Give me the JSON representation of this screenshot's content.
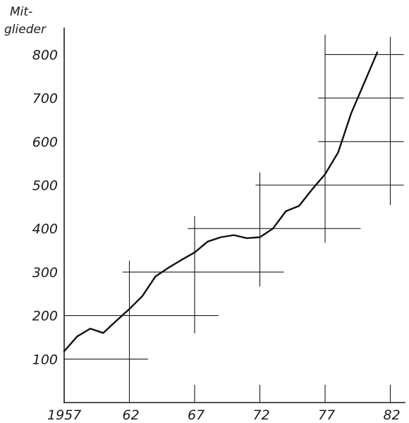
{
  "chart_data": {
    "type": "line",
    "title": "",
    "xlabel": "",
    "ylabel_lines": [
      "Mit-",
      "glieder"
    ],
    "xlim": [
      1957,
      1983
    ],
    "ylim": [
      0,
      850
    ],
    "x_ticks": [
      {
        "value": 1957,
        "label": "1957"
      },
      {
        "value": 1962,
        "label": "62"
      },
      {
        "value": 1967,
        "label": "67"
      },
      {
        "value": 1972,
        "label": "72"
      },
      {
        "value": 1977,
        "label": "77"
      },
      {
        "value": 1982,
        "label": "82"
      }
    ],
    "y_ticks": [
      {
        "value": 100,
        "label": "100"
      },
      {
        "value": 200,
        "label": "200"
      },
      {
        "value": 300,
        "label": "300"
      },
      {
        "value": 400,
        "label": "400"
      },
      {
        "value": 500,
        "label": "500"
      },
      {
        "value": 600,
        "label": "600"
      },
      {
        "value": 700,
        "label": "700"
      },
      {
        "value": 800,
        "label": "800"
      }
    ],
    "grid_segments": {
      "horizontal": [
        {
          "y": 100,
          "x_from": 1957,
          "x_to": 1963.4
        },
        {
          "y": 200,
          "x_from": 1957,
          "x_to": 1968.8
        },
        {
          "y": 300,
          "x_from": 1961.5,
          "x_to": 1973.8
        },
        {
          "y": 400,
          "x_from": 1966.5,
          "x_to": 1979.7
        },
        {
          "y": 500,
          "x_from": 1971.7,
          "x_to": 1983
        },
        {
          "y": 600,
          "x_from": 1976.5,
          "x_to": 1983
        },
        {
          "y": 700,
          "x_from": 1976.5,
          "x_to": 1983
        },
        {
          "y": 800,
          "x_from": 1977,
          "x_to": 1983
        }
      ],
      "vertical": [
        {
          "x": 1962,
          "y_from": 0,
          "y_to": 325
        },
        {
          "x": 1967,
          "y_from": 0,
          "y_to": 40
        },
        {
          "x": 1967,
          "y_from": 160,
          "y_to": 428
        },
        {
          "x": 1972,
          "y_from": 0,
          "y_to": 40
        },
        {
          "x": 1972,
          "y_from": 268,
          "y_to": 528
        },
        {
          "x": 1977,
          "y_from": 0,
          "y_to": 40
        },
        {
          "x": 1977,
          "y_from": 368,
          "y_to": 845
        },
        {
          "x": 1982,
          "y_from": 0,
          "y_to": 40
        },
        {
          "x": 1982,
          "y_from": 455,
          "y_to": 840
        }
      ]
    },
    "series": [
      {
        "x": [
          1957,
          1958,
          1959,
          1960,
          1961,
          1962,
          1963,
          1964,
          1965,
          1966,
          1967,
          1968,
          1969,
          1970,
          1971,
          1972,
          1973,
          1974,
          1975,
          1976,
          1977,
          1978,
          1979,
          1980,
          1981
        ],
        "values": [
          118,
          152,
          170,
          160,
          188,
          215,
          245,
          290,
          310,
          328,
          345,
          370,
          380,
          385,
          378,
          380,
          400,
          440,
          452,
          490,
          525,
          575,
          665,
          735,
          805
        ]
      }
    ]
  }
}
